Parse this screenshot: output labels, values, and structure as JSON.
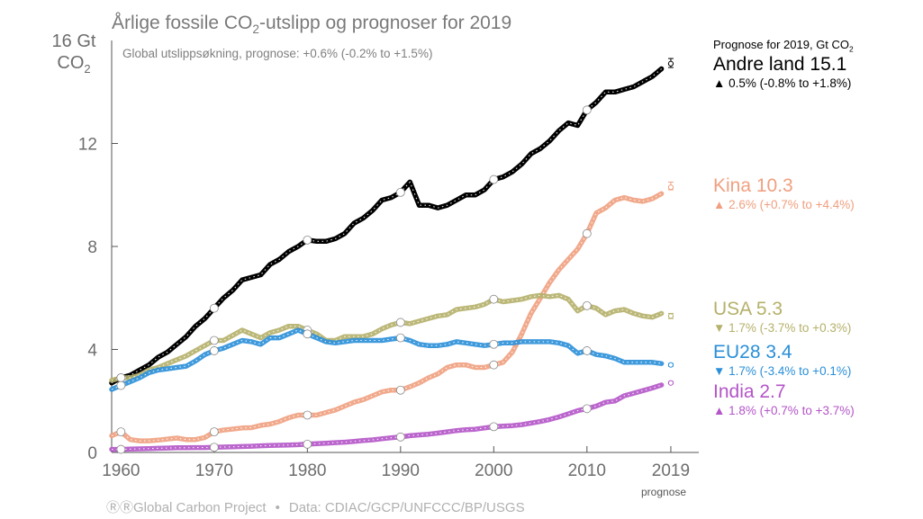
{
  "title_prefix": "Årlige fossile CO",
  "title_sub": "2",
  "title_suffix": "-utslipp og prognoser for 2019",
  "subnote": "Global utslippsøkning, prognose: +0.6% (-0.2% to +1.5%)",
  "ylabel_line1": "16 Gt",
  "ylabel_line2_prefix": "CO",
  "ylabel_line2_sub": "2",
  "legend_header_prefix": "Prognose for 2019, Gt CO",
  "legend_header_sub": "2",
  "footer_left": "Global Carbon Project",
  "footer_sep": "•",
  "footer_right": "Data: CDIAC/GCP/UNFCCC/BP/USGS",
  "footer_icons": "cc-by",
  "prognose_label": "prognose",
  "legend": [
    {
      "name": "Andre land 15.1",
      "arrow": "▲",
      "change": "0.5% (-0.8% to +1.8%)",
      "color": "#000000"
    },
    {
      "name": "Kina 10.3",
      "arrow": "▲",
      "change": "2.6% (+0.7% to +4.4%)",
      "color": "#f0a080"
    },
    {
      "name": "USA 5.3",
      "arrow": "▼",
      "change": "1.7% (-3.7% to +0.3%)",
      "color": "#b5b06a"
    },
    {
      "name": "EU28 3.4",
      "arrow": "▼",
      "change": "1.7% (-3.4% to +0.1%)",
      "color": "#2a8fd8"
    },
    {
      "name": "India 2.7",
      "arrow": "▲",
      "change": "1.8% (+0.7% to +3.7%)",
      "color": "#b455c8"
    }
  ],
  "chart_data": {
    "type": "line",
    "title": "Årlige fossile CO2-utslipp og prognoser for 2019",
    "xlabel": "",
    "ylabel": "16 Gt CO2",
    "xlim": [
      1959,
      2022
    ],
    "ylim": [
      0,
      16
    ],
    "x_ticks": [
      1960,
      1970,
      1980,
      1990,
      2000,
      2010,
      2019
    ],
    "y_ticks": [
      0,
      4,
      8,
      12
    ],
    "series": [
      {
        "name": "Andre land",
        "color": "#000000",
        "x": [
          1959,
          1960,
          1961,
          1962,
          1963,
          1964,
          1965,
          1966,
          1967,
          1968,
          1969,
          1970,
          1971,
          1972,
          1973,
          1974,
          1975,
          1976,
          1977,
          1978,
          1979,
          1980,
          1981,
          1982,
          1983,
          1984,
          1985,
          1986,
          1987,
          1988,
          1989,
          1990,
          1991,
          1992,
          1993,
          1994,
          1995,
          1996,
          1997,
          1998,
          1999,
          2000,
          2001,
          2002,
          2003,
          2004,
          2005,
          2006,
          2007,
          2008,
          2009,
          2010,
          2011,
          2012,
          2013,
          2014,
          2015,
          2016,
          2017,
          2018
        ],
        "y": [
          2.7,
          2.9,
          3.0,
          3.2,
          3.4,
          3.7,
          3.9,
          4.2,
          4.5,
          4.9,
          5.2,
          5.6,
          6.0,
          6.3,
          6.7,
          6.8,
          6.9,
          7.3,
          7.5,
          7.8,
          8.0,
          8.25,
          8.2,
          8.2,
          8.3,
          8.5,
          8.9,
          9.1,
          9.4,
          9.8,
          9.9,
          10.1,
          10.5,
          9.6,
          9.6,
          9.5,
          9.6,
          9.8,
          10.0,
          10.0,
          10.2,
          10.6,
          10.7,
          10.9,
          11.2,
          11.6,
          11.8,
          12.1,
          12.5,
          12.8,
          12.7,
          13.3,
          13.6,
          14.0,
          14.0,
          14.1,
          14.2,
          14.4,
          14.6,
          14.9
        ]
      },
      {
        "name": "Kina",
        "color": "#f0a080",
        "x": [
          1959,
          1960,
          1961,
          1962,
          1963,
          1964,
          1965,
          1966,
          1967,
          1968,
          1969,
          1970,
          1971,
          1972,
          1973,
          1974,
          1975,
          1976,
          1977,
          1978,
          1979,
          1980,
          1981,
          1982,
          1983,
          1984,
          1985,
          1986,
          1987,
          1988,
          1989,
          1990,
          1991,
          1992,
          1993,
          1994,
          1995,
          1996,
          1997,
          1998,
          1999,
          2000,
          2001,
          2002,
          2003,
          2004,
          2005,
          2006,
          2007,
          2008,
          2009,
          2010,
          2011,
          2012,
          2013,
          2014,
          2015,
          2016,
          2017,
          2018
        ],
        "y": [
          0.65,
          0.8,
          0.5,
          0.45,
          0.45,
          0.48,
          0.52,
          0.56,
          0.5,
          0.5,
          0.58,
          0.8,
          0.87,
          0.91,
          0.95,
          0.96,
          1.05,
          1.1,
          1.2,
          1.35,
          1.45,
          1.45,
          1.45,
          1.55,
          1.65,
          1.8,
          1.95,
          2.05,
          2.2,
          2.35,
          2.42,
          2.42,
          2.55,
          2.7,
          2.9,
          3.05,
          3.3,
          3.4,
          3.4,
          3.3,
          3.3,
          3.4,
          3.5,
          3.9,
          4.6,
          5.4,
          6.0,
          6.6,
          7.1,
          7.5,
          7.9,
          8.5,
          9.3,
          9.5,
          9.8,
          9.9,
          9.8,
          9.75,
          9.85,
          10.05
        ]
      },
      {
        "name": "USA",
        "color": "#b5b06a",
        "x": [
          1959,
          1960,
          1961,
          1962,
          1963,
          1964,
          1965,
          1966,
          1967,
          1968,
          1969,
          1970,
          1971,
          1972,
          1973,
          1974,
          1975,
          1976,
          1977,
          1978,
          1979,
          1980,
          1981,
          1982,
          1983,
          1984,
          1985,
          1986,
          1987,
          1988,
          1989,
          1990,
          1991,
          1992,
          1993,
          1994,
          1995,
          1996,
          1997,
          1998,
          1999,
          2000,
          2001,
          2002,
          2003,
          2004,
          2005,
          2006,
          2007,
          2008,
          2009,
          2010,
          2011,
          2012,
          2013,
          2014,
          2015,
          2016,
          2017,
          2018
        ],
        "y": [
          2.8,
          2.9,
          2.9,
          3.0,
          3.2,
          3.3,
          3.45,
          3.6,
          3.75,
          3.95,
          4.15,
          4.35,
          4.35,
          4.55,
          4.75,
          4.6,
          4.45,
          4.65,
          4.75,
          4.9,
          4.9,
          4.75,
          4.6,
          4.35,
          4.35,
          4.5,
          4.5,
          4.5,
          4.6,
          4.8,
          4.95,
          5.05,
          5.0,
          5.1,
          5.2,
          5.3,
          5.35,
          5.55,
          5.6,
          5.65,
          5.75,
          5.95,
          5.85,
          5.9,
          5.95,
          6.05,
          6.1,
          6.05,
          6.1,
          5.95,
          5.5,
          5.7,
          5.6,
          5.35,
          5.5,
          5.55,
          5.4,
          5.3,
          5.25,
          5.4
        ]
      },
      {
        "name": "EU28",
        "color": "#2a8fd8",
        "x": [
          1959,
          1960,
          1961,
          1962,
          1963,
          1964,
          1965,
          1966,
          1967,
          1968,
          1969,
          1970,
          1971,
          1972,
          1973,
          1974,
          1975,
          1976,
          1977,
          1978,
          1979,
          1980,
          1981,
          1982,
          1983,
          1984,
          1985,
          1986,
          1987,
          1988,
          1989,
          1990,
          1991,
          1992,
          1993,
          1994,
          1995,
          1996,
          1997,
          1998,
          1999,
          2000,
          2001,
          2002,
          2003,
          2004,
          2005,
          2006,
          2007,
          2008,
          2009,
          2010,
          2011,
          2012,
          2013,
          2014,
          2015,
          2016,
          2017,
          2018
        ],
        "y": [
          2.45,
          2.6,
          2.75,
          2.9,
          3.1,
          3.2,
          3.25,
          3.3,
          3.35,
          3.55,
          3.8,
          3.95,
          4.05,
          4.2,
          4.35,
          4.3,
          4.2,
          4.45,
          4.45,
          4.6,
          4.75,
          4.6,
          4.45,
          4.3,
          4.25,
          4.3,
          4.35,
          4.35,
          4.35,
          4.35,
          4.4,
          4.45,
          4.35,
          4.2,
          4.15,
          4.15,
          4.2,
          4.3,
          4.25,
          4.2,
          4.15,
          4.2,
          4.25,
          4.25,
          4.3,
          4.3,
          4.3,
          4.3,
          4.25,
          4.15,
          3.85,
          3.95,
          3.8,
          3.75,
          3.65,
          3.5,
          3.5,
          3.5,
          3.5,
          3.45
        ]
      },
      {
        "name": "India",
        "color": "#b455c8",
        "x": [
          1959,
          1960,
          1961,
          1962,
          1963,
          1964,
          1965,
          1966,
          1967,
          1968,
          1969,
          1970,
          1971,
          1972,
          1973,
          1974,
          1975,
          1976,
          1977,
          1978,
          1979,
          1980,
          1981,
          1982,
          1983,
          1984,
          1985,
          1986,
          1987,
          1988,
          1989,
          1990,
          1991,
          1992,
          1993,
          1994,
          1995,
          1996,
          1997,
          1998,
          1999,
          2000,
          2001,
          2002,
          2003,
          2004,
          2005,
          2006,
          2007,
          2008,
          2009,
          2010,
          2011,
          2012,
          2013,
          2014,
          2015,
          2016,
          2017,
          2018
        ],
        "y": [
          0.12,
          0.12,
          0.13,
          0.14,
          0.15,
          0.16,
          0.17,
          0.18,
          0.18,
          0.19,
          0.19,
          0.2,
          0.21,
          0.22,
          0.23,
          0.24,
          0.26,
          0.27,
          0.28,
          0.29,
          0.3,
          0.32,
          0.34,
          0.36,
          0.38,
          0.4,
          0.43,
          0.46,
          0.49,
          0.53,
          0.57,
          0.6,
          0.65,
          0.68,
          0.71,
          0.75,
          0.8,
          0.85,
          0.88,
          0.9,
          0.95,
          1.0,
          1.02,
          1.04,
          1.08,
          1.14,
          1.2,
          1.28,
          1.38,
          1.5,
          1.62,
          1.7,
          1.8,
          1.95,
          2.0,
          2.2,
          2.3,
          2.4,
          2.5,
          2.62
        ]
      }
    ],
    "circle_markers_years": [
      1960,
      1970,
      1980,
      1990,
      2000,
      2010
    ],
    "projections_2019": [
      {
        "name": "Andre land",
        "value": 15.1,
        "low": 14.95,
        "high": 15.3
      },
      {
        "name": "Kina",
        "value": 10.3,
        "low": 10.2,
        "high": 10.5
      },
      {
        "name": "USA",
        "value": 5.3,
        "low": 5.2,
        "high": 5.4
      },
      {
        "name": "EU28",
        "value": 3.4,
        "low": 3.35,
        "high": 3.45
      },
      {
        "name": "India",
        "value": 2.7,
        "low": 2.68,
        "high": 2.75
      }
    ]
  }
}
